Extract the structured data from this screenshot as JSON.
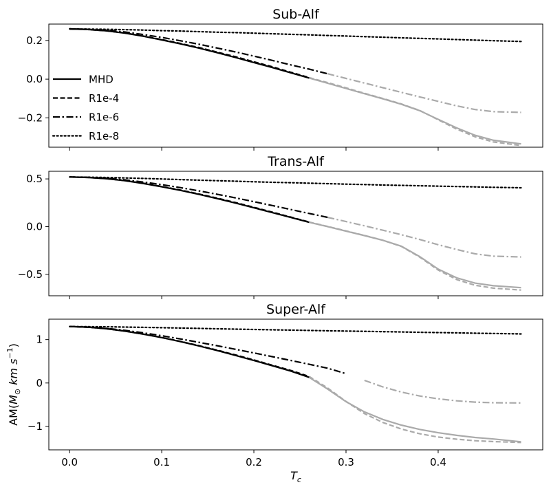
{
  "chart_data": {
    "type": "line",
    "shared_x": {
      "label": "T_c",
      "lim": [
        -0.0225,
        0.5135
      ],
      "ticks": [
        0.0,
        0.1,
        0.2,
        0.3,
        0.4
      ],
      "tick_labels": [
        "0.0",
        "0.1",
        "0.2",
        "0.3",
        "0.4"
      ]
    },
    "x": [
      0.0,
      0.02,
      0.04,
      0.06,
      0.08,
      0.1,
      0.12,
      0.14,
      0.16,
      0.18,
      0.2,
      0.22,
      0.24,
      0.26,
      0.28,
      0.3,
      0.32,
      0.34,
      0.36,
      0.38,
      0.4,
      0.42,
      0.44,
      0.46,
      0.49
    ],
    "legend": {
      "location": "lower left of top panel",
      "entries": [
        {
          "label": "MHD",
          "dash": "solid"
        },
        {
          "label": "R1e-4",
          "dash": "dashed"
        },
        {
          "label": "R1e-6",
          "dash": "dashdot"
        },
        {
          "label": "R1e-8",
          "dash": "dotted"
        }
      ]
    },
    "colors": {
      "primary": "#000000",
      "faded": "#aaaaaa"
    },
    "panels": [
      {
        "title": "Sub-Alf",
        "ylabel": "",
        "ylim": [
          -0.352,
          0.285
        ],
        "yticks": [
          0.2,
          0.0,
          -0.2
        ],
        "ytick_labels": [
          "0.2",
          "0.0",
          "−0.2"
        ],
        "series": [
          {
            "name": "MHD",
            "dash": "solid",
            "end_black_x": 0.26,
            "values": [
              0.26,
              0.257,
              0.25,
              0.238,
              0.222,
              0.203,
              0.183,
              0.161,
              0.137,
              0.112,
              0.086,
              0.06,
              0.033,
              0.006,
              -0.021,
              -0.048,
              -0.075,
              -0.102,
              -0.13,
              -0.163,
              -0.208,
              -0.252,
              -0.29,
              -0.316,
              -0.335
            ]
          },
          {
            "name": "R1e-4",
            "dash": "dashed",
            "end_black_x": 0.26,
            "values": [
              0.26,
              0.257,
              0.25,
              0.239,
              0.223,
              0.205,
              0.185,
              0.164,
              0.14,
              0.116,
              0.09,
              0.064,
              0.036,
              0.008,
              -0.018,
              -0.045,
              -0.073,
              -0.1,
              -0.128,
              -0.162,
              -0.21,
              -0.258,
              -0.298,
              -0.325,
              -0.343
            ]
          },
          {
            "name": "R1e-6",
            "dash": "dashdot",
            "end_black_x": 0.28,
            "values": [
              0.26,
              0.258,
              0.253,
              0.244,
              0.231,
              0.216,
              0.199,
              0.181,
              0.161,
              0.141,
              0.119,
              0.097,
              0.074,
              0.052,
              0.028,
              0.004,
              -0.02,
              -0.044,
              -0.068,
              -0.092,
              -0.115,
              -0.138,
              -0.157,
              -0.168,
              -0.172
            ]
          },
          {
            "name": "R1e-8",
            "dash": "dotted",
            "end_black_x": 0.49,
            "values": [
              0.26,
              0.259,
              0.258,
              0.256,
              0.254,
              0.251,
              0.249,
              0.246,
              0.243,
              0.241,
              0.238,
              0.235,
              0.232,
              0.229,
              0.226,
              0.223,
              0.22,
              0.217,
              0.214,
              0.211,
              0.208,
              0.205,
              0.202,
              0.199,
              0.195
            ]
          }
        ]
      },
      {
        "title": "Trans-Alf",
        "ylabel": "",
        "ylim": [
          -0.725,
          0.58
        ],
        "yticks": [
          0.5,
          0.0,
          -0.5
        ],
        "ytick_labels": [
          "0.5",
          "0.0",
          "−0.5"
        ],
        "series": [
          {
            "name": "MHD",
            "dash": "solid",
            "end_black_x": 0.26,
            "values": [
              0.52,
              0.515,
              0.502,
              0.481,
              0.452,
              0.418,
              0.38,
              0.339,
              0.294,
              0.247,
              0.197,
              0.147,
              0.096,
              0.045,
              0.0,
              -0.047,
              -0.094,
              -0.143,
              -0.205,
              -0.315,
              -0.445,
              -0.537,
              -0.592,
              -0.62,
              -0.64
            ]
          },
          {
            "name": "R1e-4",
            "dash": "dashed",
            "end_black_x": 0.26,
            "values": [
              0.52,
              0.515,
              0.503,
              0.483,
              0.455,
              0.421,
              0.384,
              0.343,
              0.299,
              0.252,
              0.202,
              0.152,
              0.1,
              0.048,
              0.002,
              -0.045,
              -0.093,
              -0.143,
              -0.207,
              -0.32,
              -0.455,
              -0.555,
              -0.615,
              -0.645,
              -0.665
            ]
          },
          {
            "name": "R1e-6",
            "dash": "dashdot",
            "end_black_x": 0.28,
            "values": [
              0.52,
              0.516,
              0.507,
              0.49,
              0.467,
              0.44,
              0.409,
              0.375,
              0.339,
              0.301,
              0.261,
              0.221,
              0.179,
              0.138,
              0.097,
              0.053,
              0.008,
              -0.038,
              -0.085,
              -0.135,
              -0.19,
              -0.24,
              -0.285,
              -0.31,
              -0.318
            ]
          },
          {
            "name": "R1e-8",
            "dash": "dotted",
            "end_black_x": 0.49,
            "values": [
              0.52,
              0.518,
              0.515,
              0.51,
              0.505,
              0.499,
              0.493,
              0.487,
              0.481,
              0.476,
              0.47,
              0.465,
              0.46,
              0.455,
              0.45,
              0.445,
              0.441,
              0.436,
              0.432,
              0.428,
              0.424,
              0.42,
              0.416,
              0.412,
              0.407
            ]
          }
        ]
      },
      {
        "title": "Super-Alf",
        "ylabel": "AM(M_⊙ km s^-1)",
        "ylim": [
          -1.54,
          1.47
        ],
        "yticks": [
          1,
          0,
          -1
        ],
        "ytick_labels": [
          "1",
          "0",
          "−1"
        ],
        "series": [
          {
            "name": "MHD",
            "dash": "solid",
            "end_black_x": 0.26,
            "values": [
              1.3,
              1.285,
              1.25,
              1.195,
              1.125,
              1.045,
              0.955,
              0.855,
              0.748,
              0.635,
              0.518,
              0.398,
              0.275,
              0.13,
              -0.14,
              -0.43,
              -0.665,
              -0.84,
              -0.97,
              -1.07,
              -1.145,
              -1.205,
              -1.255,
              -1.29,
              -1.355
            ]
          },
          {
            "name": "R1e-4",
            "dash": "dashed",
            "end_black_x": 0.26,
            "values": [
              1.3,
              1.285,
              1.25,
              1.196,
              1.127,
              1.048,
              0.96,
              0.862,
              0.757,
              0.646,
              0.53,
              0.41,
              0.29,
              0.15,
              -0.115,
              -0.425,
              -0.705,
              -0.91,
              -1.06,
              -1.17,
              -1.245,
              -1.295,
              -1.33,
              -1.35,
              -1.37
            ]
          },
          {
            "name": "R1e-6",
            "dash": "dashdot",
            "end_black_x": 0.31,
            "values": [
              1.3,
              1.287,
              1.258,
              1.213,
              1.155,
              1.088,
              1.015,
              0.938,
              0.858,
              0.776,
              0.692,
              0.607,
              0.52,
              0.43,
              0.34,
              0.215,
              0.06,
              -0.09,
              -0.21,
              -0.3,
              -0.365,
              -0.41,
              -0.44,
              -0.455,
              -0.46
            ]
          },
          {
            "name": "R1e-8",
            "dash": "dotted",
            "end_black_x": 0.49,
            "values": [
              1.3,
              1.298,
              1.294,
              1.288,
              1.281,
              1.273,
              1.265,
              1.257,
              1.249,
              1.241,
              1.233,
              1.225,
              1.218,
              1.21,
              1.203,
              1.196,
              1.189,
              1.182,
              1.175,
              1.168,
              1.161,
              1.154,
              1.147,
              1.14,
              1.13
            ]
          }
        ]
      }
    ]
  }
}
